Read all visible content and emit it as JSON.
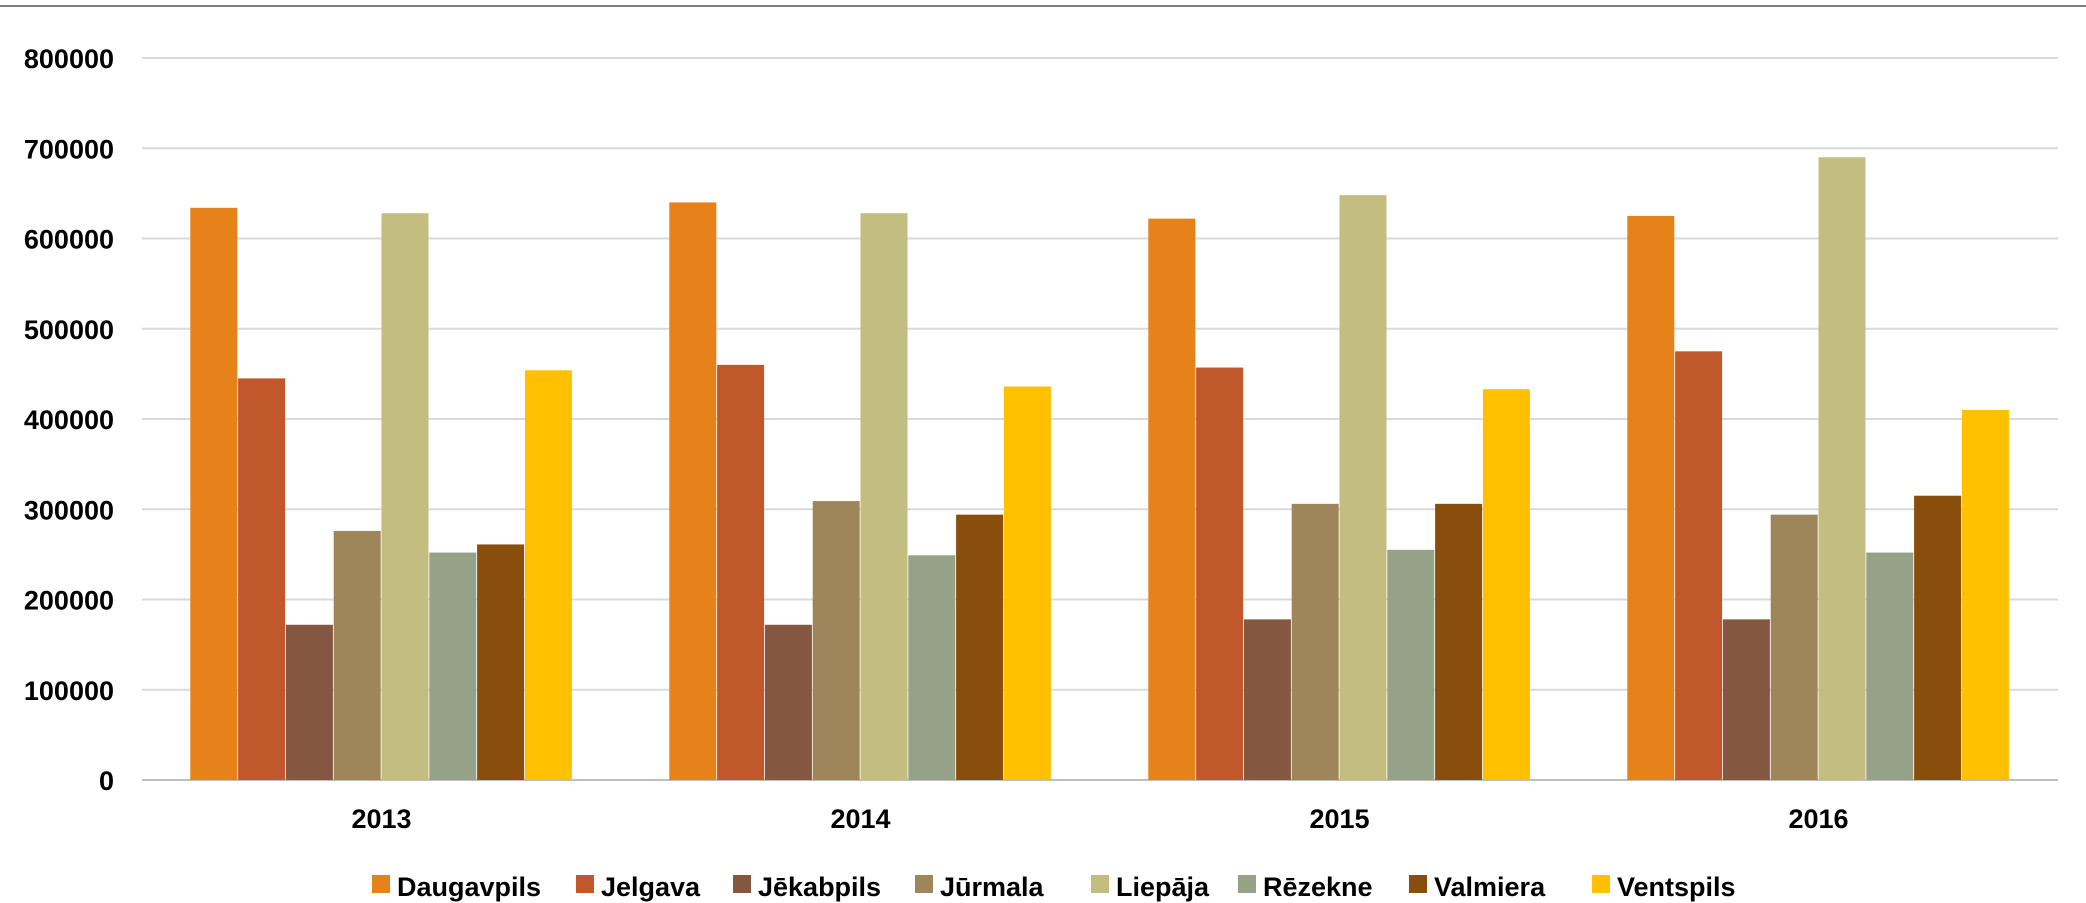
{
  "chart_data": {
    "type": "bar",
    "title": "",
    "xlabel": "",
    "ylabel": "",
    "categories": [
      "2013",
      "2014",
      "2015",
      "2016"
    ],
    "ylim": [
      0,
      800000
    ],
    "yticks": [
      "0",
      "100000",
      "200000",
      "300000",
      "400000",
      "500000",
      "600000",
      "700000",
      "800000"
    ],
    "grid": true,
    "legend_position": "bottom",
    "series": [
      {
        "name": "Daugavpils",
        "color": "#E5821A",
        "values": [
          634000,
          640000,
          622000,
          625000
        ]
      },
      {
        "name": "Jelgava",
        "color": "#C0582C",
        "values": [
          445000,
          460000,
          457000,
          475000
        ]
      },
      {
        "name": "Jēkabpils",
        "color": "#855640",
        "values": [
          172000,
          172000,
          178000,
          178000
        ]
      },
      {
        "name": "Jūrmala",
        "color": "#9E855A",
        "values": [
          276000,
          309000,
          306000,
          294000
        ]
      },
      {
        "name": "Liepāja",
        "color": "#C3BD80",
        "values": [
          628000,
          628000,
          648000,
          690000
        ]
      },
      {
        "name": "Rēzekne",
        "color": "#96A287",
        "values": [
          252000,
          249000,
          255000,
          252000
        ]
      },
      {
        "name": "Valmiera",
        "color": "#8A4E0C",
        "values": [
          261000,
          294000,
          306000,
          315000
        ]
      },
      {
        "name": "Ventspils",
        "color": "#FFC000",
        "values": [
          454000,
          436000,
          433000,
          410000
        ]
      }
    ]
  }
}
